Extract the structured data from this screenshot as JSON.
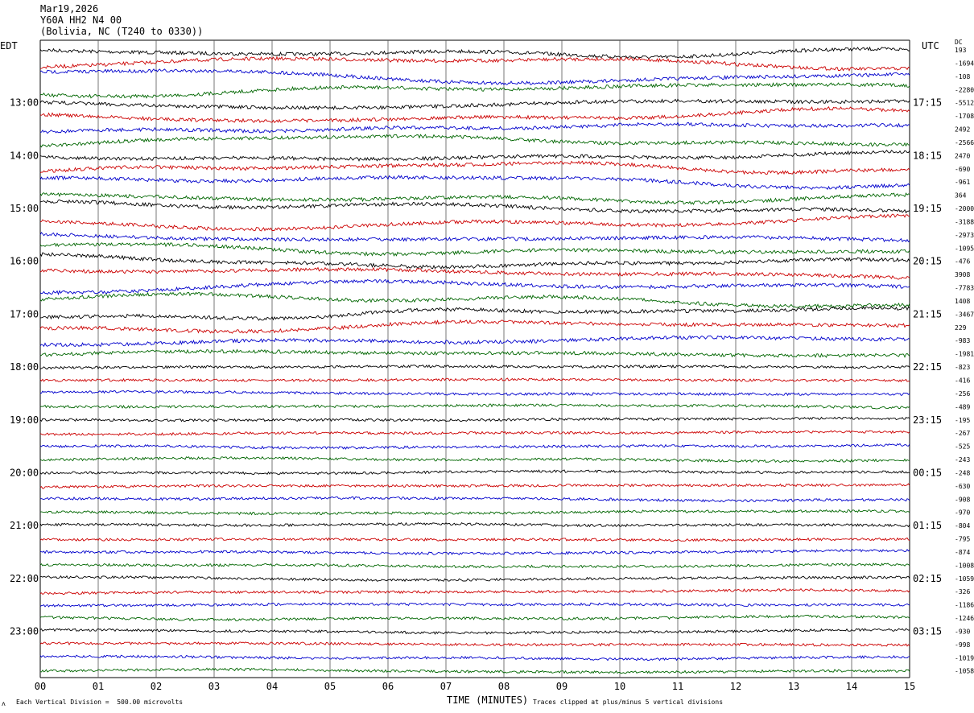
{
  "header": {
    "date": "Mar19,2026",
    "station": "Y60A HH2 N4 00",
    "location": "(Bolivia, NC (T240 to 0330))"
  },
  "left_axis_label": "EDT",
  "right_axis_label": "UTC",
  "dc_label": "DC",
  "footer": {
    "scale_note": "Each Vertical Division =  500.00 microvolts",
    "clip_note": "Traces clipped at plus/minus 5 vertical divisions",
    "mark": "ʌ"
  },
  "chart_data": {
    "type": "line",
    "xlabel": "TIME (MINUTES)",
    "x_ticks": [
      "00",
      "01",
      "02",
      "03",
      "04",
      "05",
      "06",
      "07",
      "08",
      "09",
      "10",
      "11",
      "12",
      "13",
      "14",
      "15"
    ],
    "xlim": [
      0,
      15
    ],
    "grid": "vertical lines every minute",
    "trace_colors": [
      "#000000",
      "#cc0000",
      "#0000cc",
      "#006600"
    ],
    "left_hour_labels": [
      "13:00",
      "14:00",
      "15:00",
      "16:00",
      "17:00",
      "18:00",
      "19:00",
      "20:00",
      "21:00",
      "22:00",
      "23:00"
    ],
    "right_hour_labels": [
      "17:15",
      "18:15",
      "19:15",
      "20:15",
      "21:15",
      "22:15",
      "23:15",
      "00:15",
      "01:15",
      "02:15",
      "03:15"
    ],
    "trace_offsets": [
      "193",
      "-1694",
      "-108",
      "-2280",
      "-5512",
      "-1708",
      "2492",
      "-2566",
      "2470",
      "-690",
      "-961",
      "364",
      "-2000",
      "-3188",
      "-2973",
      "-1095",
      "-476",
      "3908",
      "-7783",
      "1408",
      "-3467",
      "229",
      "-983",
      "-1981",
      "-823",
      "-416",
      "-256",
      "-489",
      "-195",
      "-267",
      "-525",
      "-243",
      "-248",
      "-630",
      "-908",
      "-970",
      "-804",
      "-795",
      "-874",
      "-1008",
      "-1059",
      "-326",
      "-1186",
      "-1246",
      "-930",
      "-998",
      "-1019",
      "-1058"
    ],
    "trace_count": 48
  }
}
